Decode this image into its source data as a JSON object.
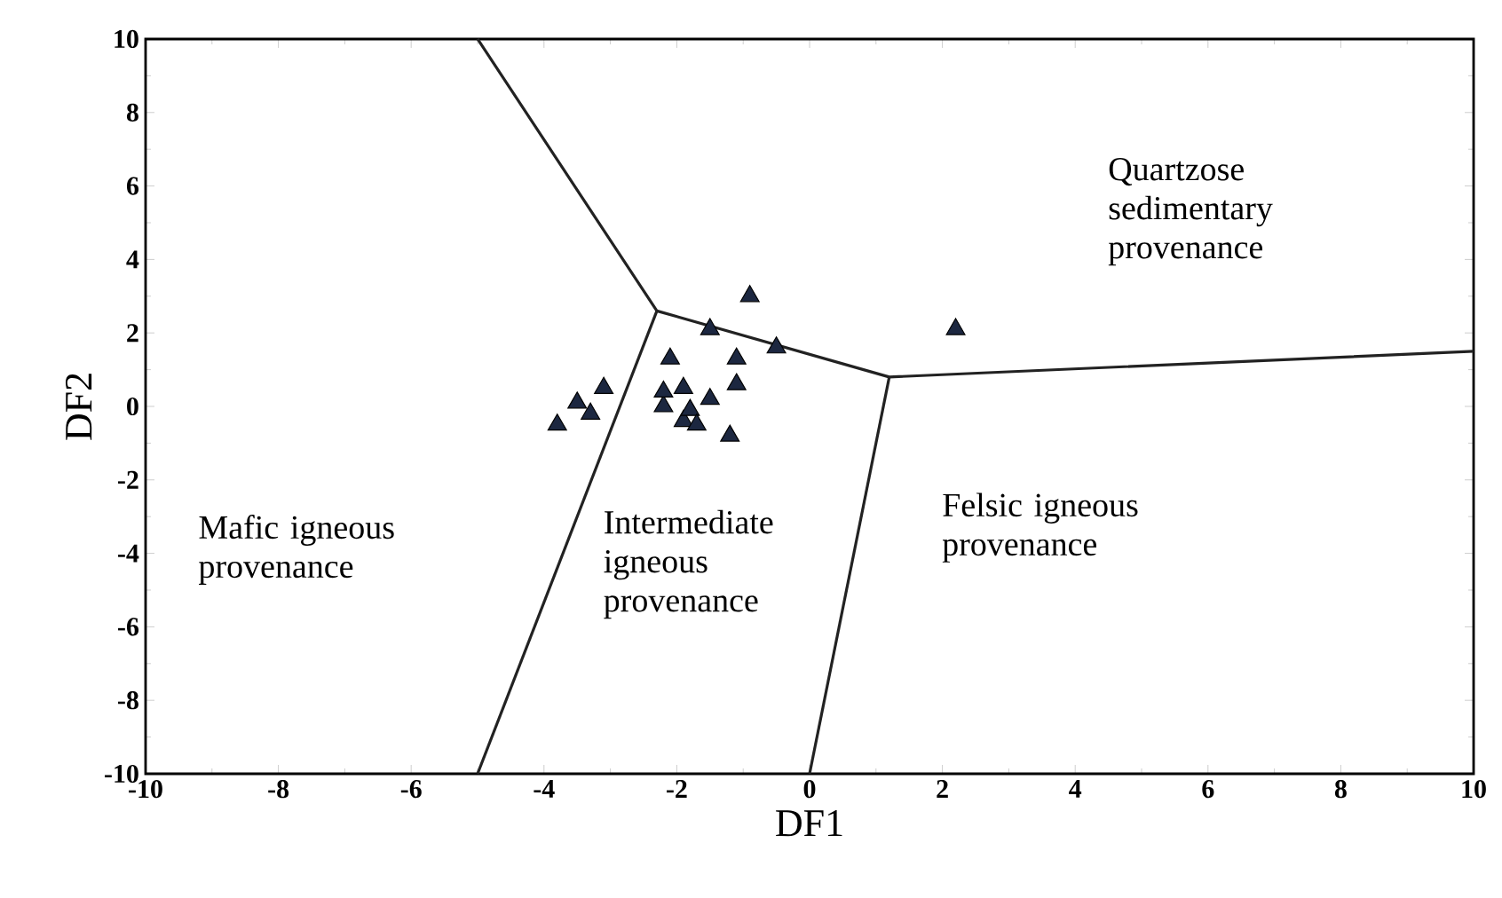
{
  "chart_data": {
    "type": "scatter",
    "xlabel": "DF1",
    "ylabel": "DF2",
    "xlim": [
      -10,
      10
    ],
    "ylim": [
      -10,
      10
    ],
    "xticks": [
      -10,
      -8,
      -6,
      -4,
      -2,
      0,
      2,
      4,
      6,
      8,
      10
    ],
    "yticks": [
      -10,
      -8,
      -6,
      -4,
      -2,
      0,
      2,
      4,
      6,
      8,
      10
    ],
    "marker": "triangle",
    "series": [
      {
        "color": "#1c2740",
        "x": [
          -3.8,
          -3.5,
          -3.3,
          -3.1,
          -2.2,
          -2.2,
          -2.1,
          -1.9,
          -1.9,
          -1.8,
          -1.7,
          -1.5,
          -1.5,
          -1.1,
          -1.1,
          -1.2,
          -0.9,
          -0.5,
          2.2
        ],
        "values": [
          -0.5,
          0.1,
          -0.2,
          0.5,
          0.0,
          0.4,
          1.3,
          0.5,
          -0.4,
          -0.1,
          -0.5,
          0.2,
          2.1,
          1.3,
          0.6,
          -0.8,
          3.0,
          1.6,
          2.1
        ]
      },
      {
        "type": "line",
        "marker": "none",
        "color": "#222222",
        "x": [
          -5,
          -2.3,
          1.2,
          10
        ],
        "values": [
          10,
          2.6,
          0.8,
          1.5
        ]
      },
      {
        "type": "line",
        "marker": "none",
        "color": "#222222",
        "x": [
          -2.3,
          -5
        ],
        "values": [
          2.6,
          -10
        ]
      },
      {
        "type": "line",
        "marker": "none",
        "color": "#222222",
        "x": [
          1.2,
          0
        ],
        "values": [
          0.8,
          -10
        ]
      }
    ],
    "annotations": [
      "Quartzose sedimentary provenance",
      "Felsic igneous provenance",
      "Intermediate igneous provenance",
      "Mafic igneous provenance"
    ]
  }
}
